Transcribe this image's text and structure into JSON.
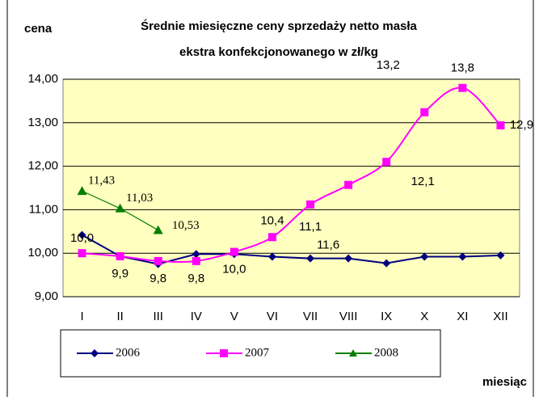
{
  "chart_data": {
    "type": "line",
    "title": "Średnie miesięczne ceny sprzedaży netto masła",
    "subtitle": "ekstra konfekcjonowanego w zł/kg",
    "y_label": "cena",
    "x_label": "miesiąc",
    "categories": [
      "I",
      "II",
      "III",
      "IV",
      "V",
      "VI",
      "VII",
      "VIII",
      "IX",
      "X",
      "XI",
      "XII"
    ],
    "ylim": [
      9,
      14
    ],
    "yticks": [
      {
        "value": 9,
        "label": "9,00"
      },
      {
        "value": 10,
        "label": "10,00"
      },
      {
        "value": 11,
        "label": "11,00"
      },
      {
        "value": 12,
        "label": "12,00"
      },
      {
        "value": 13,
        "label": "13,00"
      },
      {
        "value": 14,
        "label": "14,00"
      }
    ],
    "grid": true,
    "legend": "bottom",
    "series": [
      {
        "name": "2006",
        "color": "#000080",
        "marker": "diamond",
        "values": [
          10.42,
          9.93,
          9.75,
          9.98,
          9.98,
          9.92,
          9.88,
          9.88,
          9.77,
          9.92,
          9.92,
          9.95
        ]
      },
      {
        "name": "2007",
        "color": "#ff00ff",
        "marker": "square",
        "values": [
          10.0,
          9.93,
          9.82,
          9.82,
          10.03,
          10.37,
          11.12,
          11.57,
          12.1,
          13.24,
          13.8,
          12.94
        ],
        "value_labels": [
          "10,0",
          "9,9",
          "9,8",
          "9,8",
          "10,0",
          "10,4",
          "11,1",
          "11,6",
          "12,1",
          "13,2",
          "13,8",
          "12,9"
        ]
      },
      {
        "name": "2008",
        "color": "#008000",
        "marker": "triangle",
        "values": [
          11.43,
          11.03,
          10.53,
          null,
          null,
          null,
          null,
          null,
          null,
          null,
          null,
          null
        ],
        "value_labels": [
          "11,43",
          "11,03",
          "10,53",
          null,
          null,
          null,
          null,
          null,
          null,
          null,
          null,
          null
        ]
      }
    ]
  }
}
